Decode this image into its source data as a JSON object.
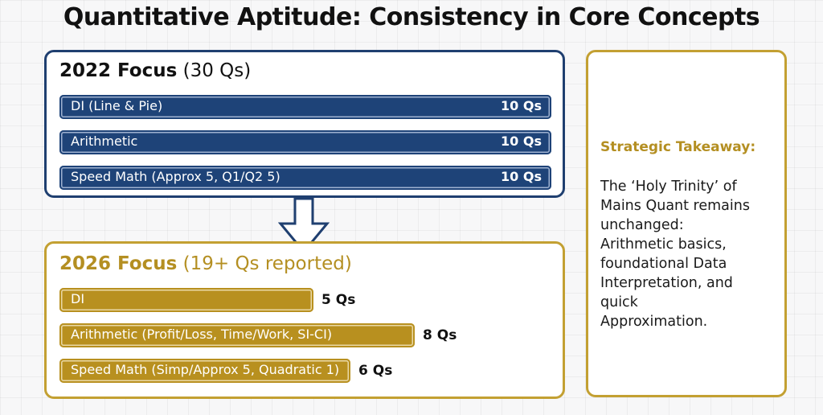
{
  "title": "Quantitative Aptitude: Consistency in Core Concepts",
  "focus_2022": {
    "heading_year": "2022 Focus",
    "heading_count": "(30 Qs)",
    "items": [
      {
        "label": "DI (Line & Pie)",
        "value": "10 Qs"
      },
      {
        "label": "Arithmetic",
        "value": "10 Qs"
      },
      {
        "label": "Speed Math (Approx 5, Q1/Q2 5)",
        "value": "10 Qs"
      }
    ]
  },
  "focus_2026": {
    "heading_year": "2026 Focus",
    "heading_count": "(19+ Qs reported)",
    "items": [
      {
        "label": "DI",
        "value": "5 Qs",
        "questions": 5
      },
      {
        "label": "Arithmetic (Profit/Loss, Time/Work, SI-CI)",
        "value": "8 Qs",
        "questions": 8
      },
      {
        "label": "Speed Math (Simp/Approx 5, Quadratic 1)",
        "value": "6 Qs",
        "questions": 6
      }
    ]
  },
  "takeaway": {
    "title": "Strategic Takeaway:",
    "lines": [
      "The ‘Holy Trinity’ of",
      "Mains Quant remains",
      "unchanged:",
      "Arithmetic basics,",
      "foundational Data",
      "Interpretation, and",
      "quick",
      "Approximation."
    ]
  },
  "colors": {
    "navy": "#1f3f70",
    "gold": "#c3a032"
  }
}
